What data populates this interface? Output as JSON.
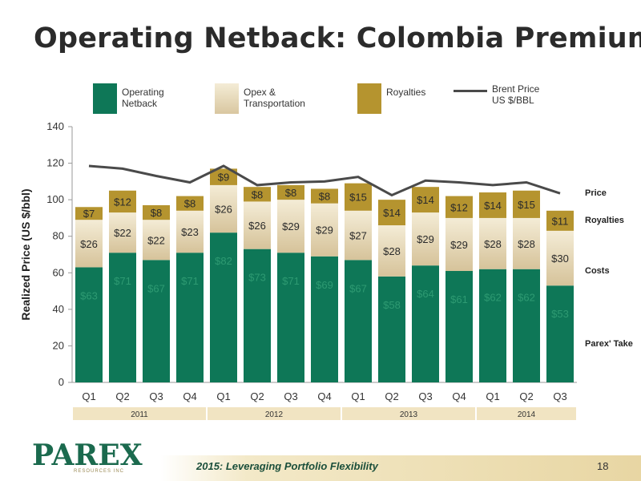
{
  "title": "Operating Netback: Colombia Premium",
  "legend": [
    {
      "name": "operating-netback",
      "label_lines": [
        "Operating",
        "Netback"
      ],
      "color": "#0e7757"
    },
    {
      "name": "opex-transportation",
      "label_lines": [
        "Opex &",
        "Transportation"
      ],
      "color": "#e3d6b4"
    },
    {
      "name": "royalties",
      "label_lines": [
        "Royalties"
      ],
      "color": "#b5942f"
    },
    {
      "name": "brent-price",
      "label_lines": [
        "Brent Price",
        "US $/BBL"
      ],
      "color": "#4a4a4a"
    }
  ],
  "right_labels": [
    "Price",
    "Royalties",
    "Costs",
    "Parex' Take"
  ],
  "year_labels": [
    "2011",
    "2012",
    "2013",
    "2014"
  ],
  "footer_text": "2015: Leveraging Portfolio Flexibility",
  "page_number": "18",
  "logo_text": "PAREX",
  "logo_subtext": "RESOURCES INC",
  "chart_data": {
    "type": "bar",
    "stacked": true,
    "categories": [
      "Q1",
      "Q2",
      "Q3",
      "Q4",
      "Q1",
      "Q2",
      "Q3",
      "Q4",
      "Q1",
      "Q2",
      "Q3",
      "Q4",
      "Q1",
      "Q2",
      "Q3"
    ],
    "year_groups": [
      {
        "label": "2011",
        "quarters": 4
      },
      {
        "label": "2012",
        "quarters": 4
      },
      {
        "label": "2013",
        "quarters": 4
      },
      {
        "label": "2014",
        "quarters": 3
      }
    ],
    "series": [
      {
        "name": "Operating Netback",
        "color": "#0e7757",
        "values": [
          63,
          71,
          67,
          71,
          82,
          73,
          71,
          69,
          67,
          58,
          64,
          61,
          62,
          62,
          53
        ],
        "labels": [
          "$63",
          "$71",
          "$67",
          "$71",
          "$82",
          "$73",
          "$71",
          "$69",
          "$67",
          "$58",
          "$64",
          "$61",
          "$62",
          "$62",
          "$53"
        ]
      },
      {
        "name": "Opex & Transportation",
        "color": "#e3d6b4",
        "values": [
          26,
          22,
          22,
          23,
          26,
          26,
          29,
          29,
          27,
          28,
          29,
          29,
          28,
          28,
          30
        ],
        "labels": [
          "$26",
          "$22",
          "$22",
          "$23",
          "$26",
          "$26",
          "$29",
          "$29",
          "$27",
          "$28",
          "$29",
          "$29",
          "$28",
          "$28",
          "$30"
        ]
      },
      {
        "name": "Royalties",
        "color": "#b5942f",
        "values": [
          7,
          12,
          8,
          8,
          9,
          8,
          8,
          8,
          15,
          14,
          14,
          12,
          14,
          15,
          11
        ],
        "labels": [
          "$7",
          "$12",
          "$8",
          "$8",
          "$9",
          "$8",
          "$8",
          "$8",
          "$15",
          "$14",
          "$14",
          "$12",
          "$14",
          "$15",
          "$11"
        ]
      }
    ],
    "line": {
      "name": "Brent Price US $/BBL",
      "color": "#4a4a4a",
      "values": [
        118.5,
        117,
        113,
        109.5,
        118.5,
        108,
        109.5,
        110,
        112.5,
        102.5,
        110.5,
        109.5,
        108,
        109.5,
        103.5
      ]
    },
    "ylabel": "Realized Price (US $/bbl)",
    "ylim": [
      0,
      140
    ],
    "yticks": [
      0,
      20,
      40,
      60,
      80,
      100,
      120,
      140
    ],
    "grid": false
  }
}
